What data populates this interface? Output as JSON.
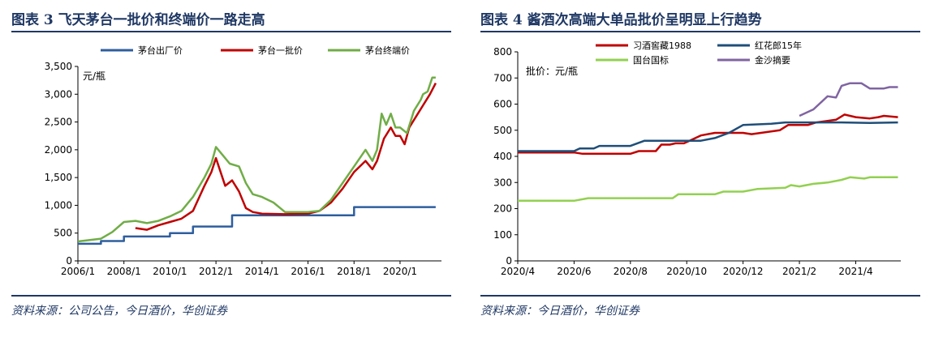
{
  "figures": [
    {
      "title": "图表 3   飞天茅台一批价和终端价一路走高",
      "source": "资料来源：公司公告，今日酒价，华创证券"
    },
    {
      "title": "图表 4   酱酒次高端大单品批价呈明显上行趋势",
      "source": "资料来源：今日酒价，华创证券"
    }
  ],
  "chart_data": [
    {
      "type": "line",
      "title": "",
      "unit_label": "元/瓶",
      "xlabel": "",
      "ylabel": "",
      "x_ticks": [
        "2006/1",
        "2008/1",
        "2010/1",
        "2012/1",
        "2014/1",
        "2016/1",
        "2018/1",
        "2020/1"
      ],
      "xlim": [
        2006.0,
        2021.8
      ],
      "ylim": [
        0,
        3500
      ],
      "y_ticks": [
        0,
        500,
        1000,
        1500,
        2000,
        2500,
        3000,
        3500
      ],
      "y_tick_labels": [
        "0",
        "500",
        "1,000",
        "1,500",
        "2,000",
        "2,500",
        "3,000",
        "3,500"
      ],
      "grid": false,
      "legend_position": "top",
      "series": [
        {
          "name": "茅台出厂价",
          "color": "#2E5E9E",
          "step": true,
          "points": [
            [
              2006.0,
              308
            ],
            [
              2007.0,
              358
            ],
            [
              2008.0,
              439
            ],
            [
              2010.0,
              499
            ],
            [
              2011.0,
              619
            ],
            [
              2012.7,
              819
            ],
            [
              2018.0,
              969
            ],
            [
              2021.55,
              969
            ]
          ]
        },
        {
          "name": "茅台一批价",
          "color": "#C00000",
          "points": [
            [
              2008.5,
              590
            ],
            [
              2009.0,
              560
            ],
            [
              2009.5,
              640
            ],
            [
              2010.0,
              700
            ],
            [
              2010.5,
              760
            ],
            [
              2011.0,
              900
            ],
            [
              2011.5,
              1350
            ],
            [
              2011.8,
              1600
            ],
            [
              2012.0,
              1850
            ],
            [
              2012.2,
              1600
            ],
            [
              2012.4,
              1350
            ],
            [
              2012.7,
              1450
            ],
            [
              2013.0,
              1250
            ],
            [
              2013.3,
              950
            ],
            [
              2013.6,
              880
            ],
            [
              2014.0,
              850
            ],
            [
              2015.0,
              840
            ],
            [
              2016.0,
              850
            ],
            [
              2016.5,
              900
            ],
            [
              2017.0,
              1050
            ],
            [
              2017.5,
              1300
            ],
            [
              2018.0,
              1600
            ],
            [
              2018.5,
              1800
            ],
            [
              2018.8,
              1650
            ],
            [
              2019.0,
              1800
            ],
            [
              2019.3,
              2200
            ],
            [
              2019.6,
              2400
            ],
            [
              2019.8,
              2250
            ],
            [
              2020.0,
              2250
            ],
            [
              2020.2,
              2100
            ],
            [
              2020.4,
              2400
            ],
            [
              2020.7,
              2600
            ],
            [
              2021.0,
              2800
            ],
            [
              2021.3,
              3000
            ],
            [
              2021.55,
              3200
            ]
          ]
        },
        {
          "name": "茅台终端价",
          "color": "#70AD47",
          "points": [
            [
              2006.0,
              350
            ],
            [
              2007.0,
              400
            ],
            [
              2007.5,
              520
            ],
            [
              2008.0,
              700
            ],
            [
              2008.5,
              720
            ],
            [
              2009.0,
              680
            ],
            [
              2009.5,
              720
            ],
            [
              2010.0,
              800
            ],
            [
              2010.5,
              900
            ],
            [
              2011.0,
              1150
            ],
            [
              2011.5,
              1500
            ],
            [
              2011.8,
              1750
            ],
            [
              2012.0,
              2050
            ],
            [
              2012.3,
              1900
            ],
            [
              2012.6,
              1750
            ],
            [
              2013.0,
              1700
            ],
            [
              2013.3,
              1400
            ],
            [
              2013.6,
              1200
            ],
            [
              2014.0,
              1150
            ],
            [
              2014.5,
              1050
            ],
            [
              2015.0,
              880
            ],
            [
              2016.0,
              880
            ],
            [
              2016.5,
              900
            ],
            [
              2017.0,
              1100
            ],
            [
              2017.5,
              1400
            ],
            [
              2018.0,
              1700
            ],
            [
              2018.5,
              2000
            ],
            [
              2018.8,
              1800
            ],
            [
              2019.0,
              2000
            ],
            [
              2019.2,
              2650
            ],
            [
              2019.4,
              2450
            ],
            [
              2019.6,
              2650
            ],
            [
              2019.8,
              2400
            ],
            [
              2020.0,
              2400
            ],
            [
              2020.3,
              2300
            ],
            [
              2020.6,
              2700
            ],
            [
              2020.9,
              2900
            ],
            [
              2021.0,
              3000
            ],
            [
              2021.2,
              3050
            ],
            [
              2021.4,
              3300
            ],
            [
              2021.55,
              3300
            ]
          ]
        }
      ]
    },
    {
      "type": "line",
      "title": "",
      "unit_label": "批价：元/瓶",
      "xlabel": "",
      "ylabel": "",
      "x_ticks": [
        "2020/4",
        "2020/6",
        "2020/8",
        "2020/10",
        "2020/12",
        "2021/2",
        "2021/4"
      ],
      "x_tick_values": [
        0,
        2,
        4,
        6,
        8,
        10,
        12
      ],
      "x_note": "x values are month index counted from the 2020/4 tick",
      "xlim": [
        0,
        13.6
      ],
      "ylim": [
        0,
        800
      ],
      "y_ticks": [
        0,
        100,
        200,
        300,
        400,
        500,
        600,
        700,
        800
      ],
      "grid": false,
      "legend_position": "top",
      "series": [
        {
          "name": "习酒窖藏1988",
          "color": "#C00000",
          "points": [
            [
              0,
              415
            ],
            [
              2,
              415
            ],
            [
              2.3,
              410
            ],
            [
              4.0,
              410
            ],
            [
              4.3,
              420
            ],
            [
              4.9,
              420
            ],
            [
              5.1,
              445
            ],
            [
              5.4,
              445
            ],
            [
              5.6,
              450
            ],
            [
              5.9,
              450
            ],
            [
              6.1,
              460
            ],
            [
              6.5,
              480
            ],
            [
              7.0,
              490
            ],
            [
              8.0,
              490
            ],
            [
              8.3,
              485
            ],
            [
              9.3,
              500
            ],
            [
              9.6,
              520
            ],
            [
              10.3,
              520
            ],
            [
              10.6,
              530
            ],
            [
              11.3,
              540
            ],
            [
              11.6,
              560
            ],
            [
              12.0,
              550
            ],
            [
              12.5,
              545
            ],
            [
              12.8,
              550
            ],
            [
              13.0,
              555
            ],
            [
              13.5,
              550
            ]
          ]
        },
        {
          "name": "红花郎15年",
          "color": "#1F4E79",
          "points": [
            [
              0,
              420
            ],
            [
              2.0,
              420
            ],
            [
              2.2,
              430
            ],
            [
              2.7,
              430
            ],
            [
              2.9,
              440
            ],
            [
              4.0,
              440
            ],
            [
              4.5,
              460
            ],
            [
              6.5,
              460
            ],
            [
              7.0,
              470
            ],
            [
              7.5,
              490
            ],
            [
              8.0,
              520
            ],
            [
              9.0,
              525
            ],
            [
              9.5,
              530
            ],
            [
              10.5,
              530
            ],
            [
              11.5,
              530
            ],
            [
              12.5,
              528
            ],
            [
              13.5,
              530
            ]
          ]
        },
        {
          "name": "国台国标",
          "color": "#92D050",
          "points": [
            [
              0,
              230
            ],
            [
              2.0,
              230
            ],
            [
              2.5,
              240
            ],
            [
              5.5,
              240
            ],
            [
              5.7,
              255
            ],
            [
              7.0,
              255
            ],
            [
              7.3,
              265
            ],
            [
              8.0,
              265
            ],
            [
              8.5,
              275
            ],
            [
              9.5,
              280
            ],
            [
              9.7,
              290
            ],
            [
              10.0,
              285
            ],
            [
              10.5,
              295
            ],
            [
              11.0,
              300
            ],
            [
              11.5,
              310
            ],
            [
              11.8,
              320
            ],
            [
              12.3,
              315
            ],
            [
              12.5,
              320
            ],
            [
              13.5,
              320
            ]
          ]
        },
        {
          "name": "金沙摘要",
          "color": "#8064A2",
          "points": [
            [
              10.0,
              555
            ],
            [
              10.5,
              580
            ],
            [
              10.8,
              610
            ],
            [
              11.0,
              630
            ],
            [
              11.3,
              625
            ],
            [
              11.5,
              670
            ],
            [
              11.8,
              680
            ],
            [
              12.2,
              680
            ],
            [
              12.5,
              660
            ],
            [
              13.0,
              660
            ],
            [
              13.2,
              665
            ],
            [
              13.5,
              665
            ]
          ]
        }
      ]
    }
  ]
}
